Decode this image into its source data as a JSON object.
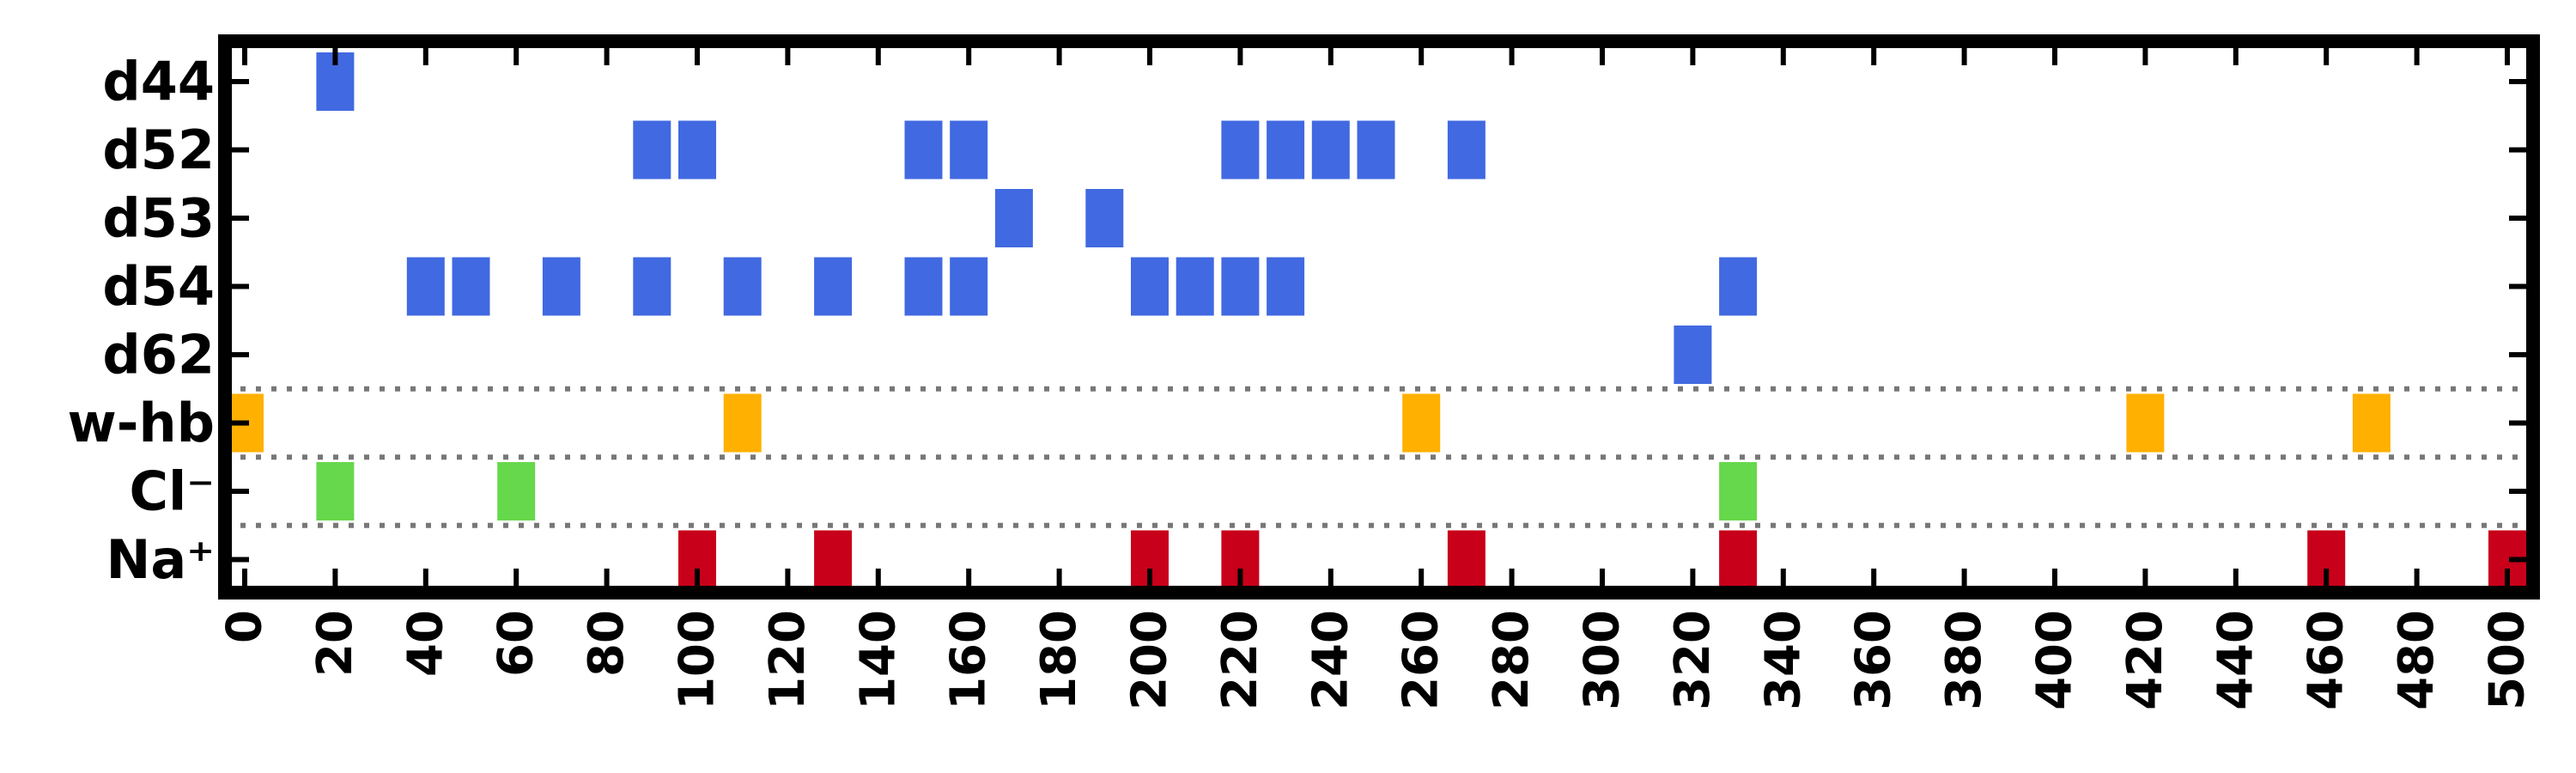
{
  "chart_data": {
    "type": "event-raster",
    "title": "",
    "xlabel": "",
    "ylabel": "",
    "xlim": [
      0,
      502
    ],
    "grid": false,
    "legend": "none",
    "x_ticks": [
      0,
      20,
      40,
      60,
      80,
      100,
      120,
      140,
      160,
      180,
      200,
      220,
      240,
      260,
      280,
      300,
      320,
      340,
      360,
      380,
      400,
      420,
      440,
      460,
      480,
      500
    ],
    "rows": [
      {
        "label": "d44",
        "color": "#4169e1",
        "events": [
          20
        ]
      },
      {
        "label": "d52",
        "color": "#4169e1",
        "events": [
          90,
          100,
          150,
          160,
          220,
          230,
          240,
          250,
          270
        ]
      },
      {
        "label": "d53",
        "color": "#4169e1",
        "events": [
          170,
          190
        ]
      },
      {
        "label": "d54",
        "color": "#4169e1",
        "events": [
          40,
          50,
          70,
          90,
          110,
          130,
          150,
          160,
          200,
          210,
          220,
          230,
          330
        ]
      },
      {
        "label": "d62",
        "color": "#4169e1",
        "events": [
          320
        ]
      },
      {
        "label": "w-hb",
        "color": "#ffb000",
        "events": [
          0,
          110,
          260,
          420,
          470
        ]
      },
      {
        "label": "Cl⁻",
        "color": "#66d84c",
        "events": [
          20,
          60,
          330
        ]
      },
      {
        "label": "Na⁺",
        "color": "#c8001a",
        "events": [
          100,
          130,
          200,
          220,
          270,
          330,
          460,
          500
        ]
      }
    ],
    "separators_after": [
      "d62",
      "w-hb",
      "Cl⁻"
    ],
    "colors": {
      "frame": "#000000",
      "separator": "#777777"
    }
  }
}
